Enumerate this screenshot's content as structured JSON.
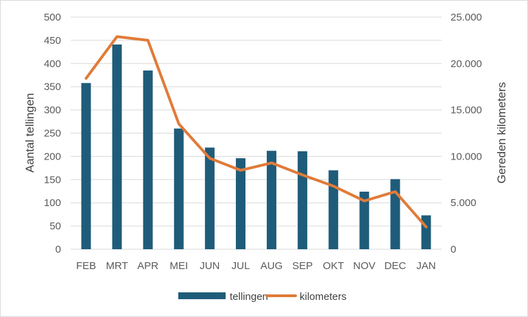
{
  "chart_data": {
    "type": "bar+line",
    "categories": [
      "FEB",
      "MRT",
      "APR",
      "MEI",
      "JUN",
      "JUL",
      "AUG",
      "SEP",
      "OKT",
      "NOV",
      "DEC",
      "JAN"
    ],
    "series": [
      {
        "name": "tellingen",
        "type": "bar",
        "axis": "left",
        "color": "#1F5C7A",
        "values": [
          358,
          441,
          385,
          260,
          219,
          196,
          212,
          211,
          170,
          124,
          151,
          73
        ]
      },
      {
        "name": "kilometers",
        "type": "line",
        "axis": "right",
        "color": "#E07B39",
        "values": [
          18400,
          22900,
          22500,
          13500,
          9800,
          8500,
          9300,
          8000,
          6800,
          5200,
          6200,
          2400
        ]
      }
    ],
    "ylabel": "Aantal tellingen",
    "y2label": "Gereden kilometers",
    "ylim": [
      0,
      500
    ],
    "y2lim": [
      0,
      25000
    ],
    "yticks": [
      "0",
      "50",
      "100",
      "150",
      "200",
      "250",
      "300",
      "350",
      "400",
      "450",
      "500"
    ],
    "y2ticks": [
      "0",
      "5.000",
      "10.000",
      "15.000",
      "20.000",
      "25.000"
    ],
    "grid": true,
    "legend": "bottom"
  }
}
